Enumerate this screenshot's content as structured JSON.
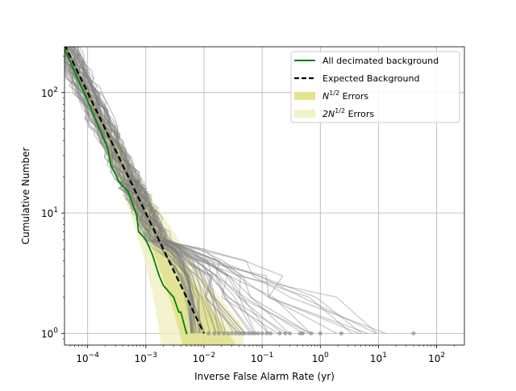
{
  "chart_data": {
    "type": "line",
    "xlabel": "Inverse False Alarm Rate (yr)",
    "ylabel": "Cumulative Number",
    "xscale": "log",
    "yscale": "log",
    "xlim": [
      4e-05,
      300
    ],
    "ylim": [
      0.8,
      240
    ],
    "grid": true,
    "legend_placement": "top-right",
    "x_ticks": [
      {
        "base": "10",
        "exp": "−4",
        "value": 0.0001
      },
      {
        "base": "10",
        "exp": "−3",
        "value": 0.001
      },
      {
        "base": "10",
        "exp": "−2",
        "value": 0.01
      },
      {
        "base": "10",
        "exp": "−1",
        "value": 0.1
      },
      {
        "base": "10",
        "exp": "0",
        "value": 1
      },
      {
        "base": "10",
        "exp": "1",
        "value": 10
      },
      {
        "base": "10",
        "exp": "2",
        "value": 100
      }
    ],
    "y_ticks": [
      {
        "base": "10",
        "exp": "0",
        "value": 1
      },
      {
        "base": "10",
        "exp": "1",
        "value": 10
      },
      {
        "base": "10",
        "exp": "2",
        "value": 100
      }
    ],
    "legend": [
      {
        "label": "All decimated background",
        "kind": "line",
        "color": "#008000"
      },
      {
        "label": "Expected Background",
        "kind": "dashed",
        "color": "#000000"
      },
      {
        "label_main": "N",
        "label_sup": "1/2",
        "label_rest": " Errors",
        "kind": "band",
        "color": "#e3e38f"
      },
      {
        "label_main": "2N",
        "label_sup": "1/2",
        "label_rest": " Errors",
        "kind": "band",
        "color": "#f2f2c8"
      }
    ],
    "colors": {
      "decimated": "#008000",
      "expected": "#000000",
      "band_1sigma": "#dede84",
      "band_2sigma": "#efefc0",
      "trials": "#808080",
      "grid": "#b0b0b0"
    },
    "series": [
      {
        "name": "All decimated background",
        "x": [
          4e-05,
          0.0001,
          0.00022,
          0.00025,
          0.00035,
          0.0005,
          0.0007,
          0.00075,
          0.001,
          0.0013,
          0.0017,
          0.002,
          0.003,
          0.0037,
          0.004,
          0.005,
          0.0052
        ],
        "y": [
          230,
          85,
          35,
          25,
          18,
          15,
          9.5,
          7,
          6,
          4.5,
          3,
          2.5,
          2,
          1.5,
          1.5,
          1,
          1
        ]
      },
      {
        "name": "Expected Background",
        "x": [
          4e-05,
          0.01
        ],
        "y": [
          250,
          1
        ]
      }
    ],
    "trials_count": 60,
    "trials_min_reach": 0.006,
    "trials_max_reach": 40,
    "points_at_one": [
      0.012,
      0.015,
      0.018,
      0.022,
      0.026,
      0.03,
      0.035,
      0.04,
      0.045,
      0.05,
      0.058,
      0.066,
      0.075,
      0.085,
      0.1,
      0.12,
      0.14,
      0.2,
      0.25,
      0.3,
      0.45,
      0.5,
      0.7,
      1.0,
      2.3,
      40
    ]
  }
}
